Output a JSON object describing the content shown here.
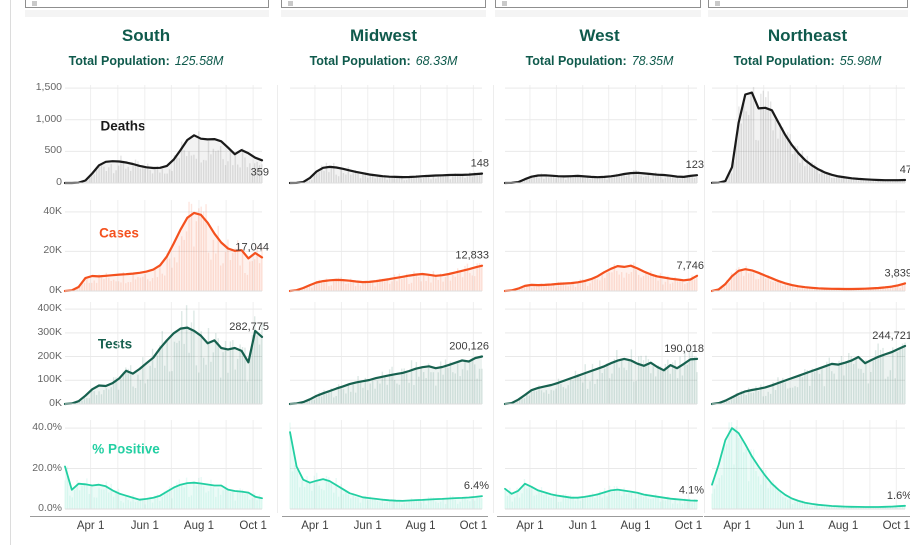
{
  "colors": {
    "header_teal": "#0f5a4c",
    "deaths_line": "#1a1a1a",
    "cases_orange": "#f4511e",
    "tests_green": "#17614f",
    "positive_mint": "#22cfa2",
    "axis_text": "#666666",
    "grid": "#ececec"
  },
  "filters": [
    {
      "name": "region-filter-1",
      "value": ""
    },
    {
      "name": "region-filter-2",
      "value": ""
    },
    {
      "name": "region-filter-3",
      "value": ""
    },
    {
      "name": "region-filter-4",
      "value": ""
    }
  ],
  "columns": [
    {
      "region": "South",
      "population_label": "Total Population:",
      "population": "125.58M"
    },
    {
      "region": "Midwest",
      "population_label": "Total Population:",
      "population": "68.33M"
    },
    {
      "region": "West",
      "population_label": "Total Population:",
      "population": "78.35M"
    },
    {
      "region": "Northeast",
      "population_label": "Total Population:",
      "population": "55.98M"
    }
  ],
  "x_axis": {
    "labels": [
      "Apr 1",
      "Jun 1",
      "Aug 1",
      "Oct 1"
    ]
  },
  "chart_data": [
    {
      "type": "area",
      "metric": "Deaths",
      "color": "#1a1a1a",
      "fill": "rgba(0,0,0,0.05)",
      "bar": "rgba(110,110,110,0.18)",
      "ylim": [
        0,
        1550
      ],
      "yticks": [
        {
          "label": "1,500",
          "v": 1500
        },
        {
          "label": "1,000",
          "v": 1000
        },
        {
          "label": "500",
          "v": 500
        },
        {
          "label": "0",
          "v": 0
        }
      ],
      "x_ticks": [
        "Apr 1",
        "Jun 1",
        "Aug 1",
        "Oct 1"
      ],
      "series": [
        {
          "name": "South",
          "end_label": "359",
          "end_below": true,
          "values": [
            0,
            0,
            5,
            40,
            150,
            280,
            335,
            345,
            340,
            325,
            300,
            270,
            248,
            238,
            240,
            270,
            370,
            520,
            680,
            755,
            700,
            690,
            695,
            660,
            560,
            455,
            520,
            470,
            400,
            359
          ]
        },
        {
          "name": "Midwest",
          "end_label": "148",
          "end_below": false,
          "values": [
            0,
            2,
            15,
            80,
            180,
            240,
            255,
            245,
            225,
            200,
            175,
            155,
            135,
            120,
            108,
            100,
            96,
            93,
            95,
            100,
            107,
            112,
            118,
            122,
            127,
            130,
            128,
            133,
            140,
            148
          ]
        },
        {
          "name": "West",
          "end_label": "123",
          "end_below": false,
          "values": [
            0,
            2,
            15,
            60,
            100,
            118,
            122,
            115,
            108,
            104,
            108,
            112,
            104,
            97,
            92,
            96,
            106,
            122,
            142,
            156,
            162,
            152,
            142,
            132,
            126,
            116,
            102,
            96,
            112,
            123
          ]
        },
        {
          "name": "Northeast",
          "end_label": "47",
          "end_below": false,
          "values": [
            2,
            5,
            30,
            250,
            950,
            1400,
            1430,
            1180,
            1190,
            1150,
            950,
            760,
            600,
            470,
            360,
            280,
            215,
            165,
            130,
            105,
            88,
            75,
            65,
            58,
            52,
            48,
            45,
            44,
            45,
            47
          ]
        }
      ]
    },
    {
      "type": "area",
      "metric": "Cases",
      "color": "#f4511e",
      "fill": "rgba(244,81,30,0.08)",
      "bar": "rgba(244,81,30,0.14)",
      "unit": "K",
      "ylim": [
        0,
        46
      ],
      "yticks": [
        {
          "label": "40K",
          "v": 40
        },
        {
          "label": "20K",
          "v": 20
        },
        {
          "label": "0K",
          "v": 0
        }
      ],
      "x_ticks": [
        "Apr 1",
        "Jun 1",
        "Aug 1",
        "Oct 1"
      ],
      "series": [
        {
          "name": "South",
          "end_label": "17,044",
          "end_below": false,
          "values": [
            0,
            0.3,
            2,
            6.5,
            7.6,
            7.4,
            7.7,
            8,
            8.3,
            8.5,
            8.8,
            9.2,
            9.8,
            10.8,
            13,
            17.5,
            24,
            31,
            37,
            39.5,
            38.5,
            34.5,
            29,
            24.5,
            21.5,
            20.3,
            20.6,
            16.5,
            19.2,
            17
          ]
        },
        {
          "name": "Midwest",
          "end_label": "12,833",
          "end_below": false,
          "values": [
            0,
            0.4,
            1.5,
            3,
            4.3,
            5,
            5.4,
            5.6,
            5.5,
            5.2,
            4.8,
            4.5,
            4.6,
            5,
            5.5,
            6,
            6.6,
            7.2,
            7.8,
            8.3,
            8.6,
            8.2,
            7.7,
            8,
            8.6,
            9.4,
            10.2,
            11,
            12,
            12.8
          ]
        },
        {
          "name": "West",
          "end_label": "7,746",
          "end_below": false,
          "values": [
            0,
            0.3,
            1.2,
            2.6,
            3.1,
            3,
            3.1,
            3.3,
            3.6,
            3.8,
            4,
            4.4,
            5,
            6,
            7.5,
            9.5,
            11.2,
            12.6,
            12.2,
            12.8,
            11.4,
            9.8,
            8.4,
            7.4,
            6.8,
            6.2,
            5.8,
            5.4,
            5.8,
            7.7
          ]
        },
        {
          "name": "Northeast",
          "end_label": "3,839",
          "end_below": false,
          "values": [
            0,
            0.8,
            3.5,
            7.5,
            10.2,
            11,
            10.4,
            9.2,
            7.8,
            6.4,
            5,
            3.9,
            3,
            2.4,
            1.9,
            1.6,
            1.35,
            1.2,
            1.1,
            1.05,
            1,
            1,
            1.05,
            1.15,
            1.3,
            1.5,
            1.8,
            2.2,
            2.9,
            3.84
          ]
        }
      ]
    },
    {
      "type": "area",
      "metric": "Tests",
      "color": "#17614f",
      "fill": "rgba(23,97,79,0.08)",
      "bar": "rgba(23,97,79,0.14)",
      "unit": "K",
      "ylim": [
        0,
        430
      ],
      "yticks": [
        {
          "label": "400K",
          "v": 400
        },
        {
          "label": "300K",
          "v": 300
        },
        {
          "label": "200K",
          "v": 200
        },
        {
          "label": "100K",
          "v": 100
        },
        {
          "label": "0K",
          "v": 0
        }
      ],
      "x_ticks": [
        "Apr 1",
        "Jun 1",
        "Aug 1",
        "Oct 1"
      ],
      "series": [
        {
          "name": "South",
          "end_label": "282,775",
          "end_below": false,
          "values": [
            0,
            2,
            12,
            35,
            62,
            78,
            76,
            88,
            108,
            140,
            128,
            148,
            172,
            195,
            235,
            268,
            298,
            318,
            322,
            308,
            288,
            256,
            268,
            236,
            230,
            236,
            224,
            176,
            308,
            282.8
          ]
        },
        {
          "name": "Midwest",
          "end_label": "200,126",
          "end_below": false,
          "values": [
            0,
            2,
            8,
            20,
            34,
            45,
            55,
            65,
            74,
            84,
            91,
            96,
            101,
            109,
            115,
            121,
            126,
            131,
            139,
            149,
            155,
            159,
            151,
            156,
            165,
            174,
            184,
            179,
            194,
            200.1
          ]
        },
        {
          "name": "West",
          "end_label": "190,018",
          "end_below": false,
          "values": [
            0,
            4,
            18,
            38,
            58,
            68,
            74,
            80,
            89,
            99,
            109,
            119,
            129,
            139,
            149,
            159,
            172,
            183,
            190,
            184,
            170,
            161,
            174,
            156,
            142,
            164,
            151,
            169,
            188,
            190
          ]
        },
        {
          "name": "Northeast",
          "end_label": "244,721",
          "end_below": false,
          "values": [
            0,
            4,
            14,
            28,
            42,
            53,
            59,
            64,
            70,
            79,
            89,
            99,
            109,
            119,
            129,
            139,
            149,
            159,
            169,
            166,
            174,
            184,
            198,
            172,
            186,
            199,
            209,
            219,
            232,
            244.7
          ]
        }
      ]
    },
    {
      "type": "area",
      "metric": "% Positive",
      "color": "#22cfa2",
      "fill": "rgba(34,207,162,0.09)",
      "bar": "rgba(34,207,162,0.10)",
      "unit": "%",
      "ylim": [
        0,
        44
      ],
      "yticks": [
        {
          "label": "40.0%",
          "v": 40
        },
        {
          "label": "20.0%",
          "v": 20
        },
        {
          "label": "0.0%",
          "v": 0
        }
      ],
      "x_ticks": [
        "Apr 1",
        "Jun 1",
        "Aug 1",
        "Oct 1"
      ],
      "series": [
        {
          "name": "South",
          "end_label": null,
          "end_below": false,
          "values": [
            21,
            9.5,
            12.5,
            12.2,
            11.6,
            12,
            11.2,
            9.2,
            7.6,
            6.6,
            5.6,
            4.6,
            5,
            5.6,
            6.6,
            8.6,
            10.6,
            12,
            12.8,
            13,
            12.6,
            12.1,
            11.6,
            11.6,
            9.6,
            8.9,
            8.6,
            8.1,
            6.1,
            5.3
          ]
        },
        {
          "name": "Midwest",
          "end_label": "6.4%",
          "end_below": false,
          "values": [
            38,
            21,
            14.5,
            13,
            14,
            14.8,
            13.8,
            11.8,
            9.8,
            7.8,
            6.8,
            5.8,
            5.4,
            5,
            4.6,
            4.3,
            4.1,
            4,
            4.2,
            4.4,
            4.5,
            4.7,
            4.9,
            5,
            5.2,
            5.4,
            5.5,
            5.7,
            6,
            6.4
          ]
        },
        {
          "name": "West",
          "end_label": "4.1%",
          "end_below": false,
          "values": [
            10,
            7.5,
            9,
            12.5,
            11,
            9.2,
            8.2,
            7.2,
            6.6,
            6.1,
            5.6,
            5.6,
            6,
            6.6,
            7.2,
            8.2,
            9.2,
            9.6,
            9.1,
            8.6,
            8,
            7.1,
            6.6,
            6.1,
            5.6,
            5.1,
            4.8,
            4.5,
            4.2,
            4.1
          ]
        },
        {
          "name": "Northeast",
          "end_label": "1.6%",
          "end_below": false,
          "values": [
            12,
            22,
            34,
            40,
            37.5,
            32,
            26,
            21,
            16.5,
            12.5,
            9.5,
            7,
            5.2,
            4,
            3.1,
            2.5,
            2.1,
            1.8,
            1.5,
            1.35,
            1.2,
            1.1,
            1.05,
            1,
            1,
            1,
            1.1,
            1.2,
            1.4,
            1.6
          ]
        }
      ]
    }
  ]
}
